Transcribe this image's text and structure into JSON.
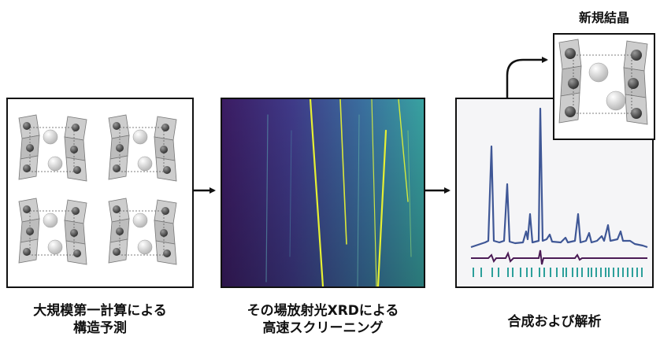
{
  "captions": {
    "prediction": [
      "大規模第一計算による",
      "構造予測"
    ],
    "screening": [
      "その場放射光XRDによる",
      "高速スクリーニング"
    ],
    "analysis": "合成および解析",
    "new_crystal": "新規結晶"
  },
  "colors": {
    "xrd_background_left": "#3b1c63",
    "xrd_background_right": "#38a2a0",
    "xrd_line": "#e6f033",
    "pattern_line": "#3f5796",
    "difference_line": "#4b1b55",
    "tick_marks": "#2c9f9a",
    "polyhedra": "#c8c8c8",
    "atom_small": "#555555",
    "atom_large": "#e8e8e8"
  },
  "icons": [
    "arrow-right-icon",
    "curved-arrow-icon"
  ]
}
